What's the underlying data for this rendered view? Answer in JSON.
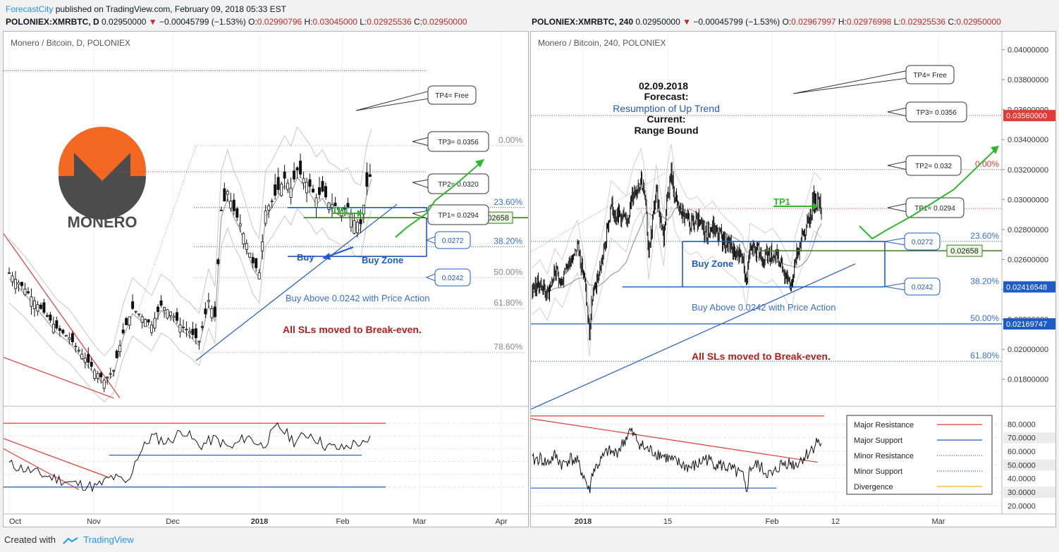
{
  "header": {
    "brand": "ForecastCity",
    "publish_text": " published on TradingView.com, February 09, 2018 05:33 EST",
    "left_symbol": {
      "symbol": "POLONIEX:XMRBTC, D",
      "price": "0.02950000",
      "change": "−0.00045799 (−1.53%)",
      "o": "0.02990796",
      "h": "0.03045000",
      "l": "0.02925536",
      "c": "0.02950000"
    },
    "right_symbol": {
      "symbol": "POLONIEX:XMRBTC, 240",
      "price": "0.02950000",
      "change": "−0.00045799 (−1.53%)",
      "o": "0.02967997",
      "h": "0.02976998",
      "l": "0.02925536",
      "c": "0.02950000"
    }
  },
  "footer": {
    "created_with": "Created with",
    "tradingview": "TradingView"
  },
  "colors": {
    "major_resistance": "#e53935",
    "major_support": "#1e5bc6",
    "minor_resistance": "#e53935",
    "minor_support": "#1e5bc6",
    "divergence": "#f0b323",
    "tp_arrow": "#2eb82e",
    "sl_text": "#b71c1c",
    "fib_text": "#3b6fcf"
  },
  "left_panel": {
    "title": "Monero / Bitcoin, D, POLONIEX",
    "logo_text": "MONERO",
    "fib_labels": [
      "0.00%",
      "23.60%",
      "38.20%",
      "50.00%",
      "61.80%",
      "78.60%"
    ],
    "tp_callouts": [
      "TP4= Free",
      "TP3= 0.0356",
      "TP2= 0.0320",
      "TP1= 0.0294"
    ],
    "zone_callouts": [
      "0.0272",
      "0.0242"
    ],
    "price_tag": "0.02658",
    "tp1_label": "TP1",
    "buy_label": "Buy",
    "buy_zone_label": "Buy Zone",
    "buy_above_text": "Buy Above 0.0242 with Price Action",
    "sl_text": "All SLs moved to Break-even.",
    "x_ticks": [
      "Oct",
      "Nov",
      "Dec",
      "2018",
      "Feb",
      "Mar",
      "Apr"
    ]
  },
  "right_panel": {
    "title": "Monero / Bitcoin, 240, POLONIEX",
    "forecast": {
      "date": "02.09.2018",
      "forecast_label": "Forecast:",
      "forecast_value": "Resumption of Up Trend",
      "current_label": "Current:",
      "current_value": "Range Bound"
    },
    "fib_labels": [
      "0.00%",
      "23.60%",
      "38.20%",
      "50.00%",
      "61.80%"
    ],
    "tp_callouts": [
      "TP4= Free",
      "TP3= 0.0356",
      "TP2= 0.032",
      "TP1= 0.0294"
    ],
    "zone_callouts": [
      "0.0272",
      "0.0242"
    ],
    "price_tag": "0.02658",
    "tp1_label": "TP1",
    "buy_zone_label": "Buy Zone",
    "buy_above_text": "Buy Above 0.0242 with Price Action",
    "sl_text": "All SLs moved to Break-even.",
    "x_ticks": [
      "2018",
      "15",
      "Feb",
      "12",
      "Mar"
    ],
    "price_axis": [
      "0.04000000",
      "0.03800000",
      "0.03600000",
      "0.03400000",
      "0.03200000",
      "0.03000000",
      "0.02800000",
      "0.02600000",
      "0.02400000",
      "0.02200000",
      "0.02000000",
      "0.01800000"
    ],
    "price_axis_tags": [
      "0.03560000",
      "0.02416548",
      "0.02169747"
    ],
    "indicator_axis": [
      "80.0000",
      "70.0000",
      "60.0000",
      "50.0000",
      "40.0000",
      "30.0000",
      "20.0000"
    ],
    "legend": [
      {
        "label": "Major Resistance",
        "color": "#e53935",
        "style": "solid"
      },
      {
        "label": "Major Support",
        "color": "#1e5bc6",
        "style": "solid"
      },
      {
        "label": "Minor Resistance",
        "color": "#e53935",
        "style": "dotted"
      },
      {
        "label": "Minor Support",
        "color": "#1e5bc6",
        "style": "dotted"
      },
      {
        "label": "Divergence",
        "color": "#f0b323",
        "style": "solid"
      }
    ]
  },
  "chart_data": [
    {
      "type": "candlestick",
      "title": "Monero / Bitcoin, D, POLONIEX",
      "x_range": [
        "2017-10-01",
        "2018-04-05"
      ],
      "ylim": [
        0.015,
        0.038
      ],
      "x_ticks": [
        "Oct",
        "Nov",
        "Dec",
        "2018",
        "Feb",
        "Mar",
        "Apr"
      ],
      "levels": {
        "tp2": 0.032,
        "tp3": 0.0356,
        "tp1": 0.0294,
        "zone_top": 0.0272,
        "zone_bottom": 0.0242,
        "support_line": 0.02658,
        "fib_0": 0.031,
        "fib_236": 0.0272,
        "fib_382": 0.0248,
        "fib_50": 0.0229,
        "fib_618": 0.021,
        "fib_786": 0.0183
      },
      "path": [
        [
          0,
          0.0232
        ],
        [
          10,
          0.0222
        ],
        [
          20,
          0.021
        ],
        [
          30,
          0.0198
        ],
        [
          38,
          0.0192
        ],
        [
          46,
          0.0182
        ],
        [
          54,
          0.0172
        ],
        [
          60,
          0.0166
        ],
        [
          66,
          0.0172
        ],
        [
          72,
          0.0195
        ],
        [
          78,
          0.021
        ],
        [
          84,
          0.0205
        ],
        [
          90,
          0.02
        ],
        [
          96,
          0.0212
        ],
        [
          102,
          0.0208
        ],
        [
          108,
          0.02
        ],
        [
          114,
          0.0196
        ],
        [
          120,
          0.019
        ],
        [
          126,
          0.0215
        ],
        [
          130,
          0.0205
        ],
        [
          134,
          0.027
        ],
        [
          138,
          0.0282
        ],
        [
          142,
          0.027
        ],
        [
          146,
          0.0262
        ],
        [
          150,
          0.025
        ],
        [
          154,
          0.0238
        ],
        [
          158,
          0.0232
        ],
        [
          162,
          0.027
        ],
        [
          166,
          0.0276
        ],
        [
          170,
          0.0283
        ],
        [
          174,
          0.029
        ],
        [
          178,
          0.0284
        ],
        [
          182,
          0.0295
        ],
        [
          186,
          0.029
        ],
        [
          190,
          0.0285
        ],
        [
          194,
          0.0278
        ],
        [
          198,
          0.0282
        ],
        [
          202,
          0.0275
        ],
        [
          206,
          0.0273
        ],
        [
          210,
          0.027
        ],
        [
          214,
          0.0272
        ],
        [
          218,
          0.0264
        ],
        [
          222,
          0.0262
        ],
        [
          226,
          0.0285
        ],
        [
          229,
          0.0294
        ]
      ],
      "main_series_label": "XMRBTC D",
      "indicator": {
        "ylim": [
          10,
          90
        ],
        "resistance": 80,
        "support_major": 55,
        "support_minor": 30,
        "path": [
          [
            0,
            48
          ],
          [
            20,
            40
          ],
          [
            40,
            33
          ],
          [
            55,
            30
          ],
          [
            65,
            38
          ],
          [
            75,
            33
          ],
          [
            80,
            52
          ],
          [
            90,
            70
          ],
          [
            100,
            65
          ],
          [
            110,
            75
          ],
          [
            120,
            62
          ],
          [
            130,
            68
          ],
          [
            140,
            60
          ],
          [
            150,
            70
          ],
          [
            160,
            62
          ],
          [
            170,
            78
          ],
          [
            180,
            66
          ],
          [
            190,
            72
          ],
          [
            200,
            62
          ],
          [
            210,
            60
          ],
          [
            220,
            65
          ],
          [
            226,
            62
          ],
          [
            229,
            70
          ]
        ]
      }
    },
    {
      "type": "line",
      "title": "Monero / Bitcoin, 240, POLONIEX",
      "x_range": [
        "2017-12-26",
        "2018-03-07"
      ],
      "ylim": [
        0.0162,
        0.0412
      ],
      "x_ticks": [
        "2018",
        "15",
        "Feb",
        "12",
        "Mar"
      ],
      "levels": {
        "tp3": 0.0356,
        "tp2": 0.032,
        "tp1": 0.0294,
        "zone_top": 0.0272,
        "zone_bottom": 0.02416548,
        "support_line": 0.02658,
        "fib_50": 0.02169747,
        "fib_618": 0.0192
      },
      "path": [
        [
          0,
          0.024
        ],
        [
          10,
          0.0245
        ],
        [
          20,
          0.0236
        ],
        [
          30,
          0.0252
        ],
        [
          40,
          0.0245
        ],
        [
          50,
          0.026
        ],
        [
          60,
          0.027
        ],
        [
          70,
          0.0245
        ],
        [
          76,
          0.021
        ],
        [
          80,
          0.0235
        ],
        [
          86,
          0.0245
        ],
        [
          95,
          0.0265
        ],
        [
          105,
          0.0295
        ],
        [
          115,
          0.029
        ],
        [
          125,
          0.0285
        ],
        [
          135,
          0.0305
        ],
        [
          145,
          0.0315
        ],
        [
          150,
          0.03
        ],
        [
          155,
          0.0265
        ],
        [
          160,
          0.0285
        ],
        [
          165,
          0.0305
        ],
        [
          170,
          0.029
        ],
        [
          175,
          0.0275
        ],
        [
          180,
          0.0305
        ],
        [
          185,
          0.0318
        ],
        [
          190,
          0.03
        ],
        [
          195,
          0.0295
        ],
        [
          200,
          0.029
        ],
        [
          205,
          0.0285
        ],
        [
          210,
          0.0283
        ],
        [
          220,
          0.0285
        ],
        [
          230,
          0.0278
        ],
        [
          240,
          0.0282
        ],
        [
          250,
          0.0275
        ],
        [
          260,
          0.027
        ],
        [
          270,
          0.0266
        ],
        [
          280,
          0.026
        ],
        [
          285,
          0.0245
        ],
        [
          290,
          0.0268
        ],
        [
          300,
          0.0265
        ],
        [
          310,
          0.0262
        ],
        [
          320,
          0.0265
        ],
        [
          330,
          0.0258
        ],
        [
          340,
          0.0248
        ],
        [
          345,
          0.0242
        ],
        [
          350,
          0.026
        ],
        [
          355,
          0.0268
        ],
        [
          360,
          0.0275
        ],
        [
          365,
          0.0282
        ],
        [
          370,
          0.029
        ],
        [
          375,
          0.03
        ],
        [
          380,
          0.0298
        ],
        [
          385,
          0.0295
        ]
      ],
      "main_series_label": "XMRBTC 240",
      "indicator": {
        "ylim": [
          15,
          90
        ],
        "resistance": 86,
        "support_major": 33,
        "path": [
          [
            0,
            53
          ],
          [
            10,
            55
          ],
          [
            20,
            51
          ],
          [
            30,
            57
          ],
          [
            40,
            50
          ],
          [
            50,
            55
          ],
          [
            60,
            52
          ],
          [
            70,
            40
          ],
          [
            76,
            30
          ],
          [
            80,
            45
          ],
          [
            90,
            52
          ],
          [
            100,
            60
          ],
          [
            110,
            58
          ],
          [
            120,
            65
          ],
          [
            130,
            75
          ],
          [
            140,
            68
          ],
          [
            150,
            62
          ],
          [
            160,
            60
          ],
          [
            170,
            58
          ],
          [
            180,
            55
          ],
          [
            190,
            52
          ],
          [
            200,
            50
          ],
          [
            210,
            48
          ],
          [
            220,
            50
          ],
          [
            230,
            55
          ],
          [
            240,
            52
          ],
          [
            250,
            50
          ],
          [
            260,
            48
          ],
          [
            270,
            45
          ],
          [
            280,
            42
          ],
          [
            285,
            30
          ],
          [
            290,
            48
          ],
          [
            300,
            50
          ],
          [
            310,
            45
          ],
          [
            320,
            42
          ],
          [
            330,
            50
          ],
          [
            340,
            52
          ],
          [
            350,
            50
          ],
          [
            360,
            55
          ],
          [
            370,
            60
          ],
          [
            380,
            68
          ],
          [
            385,
            64
          ]
        ]
      }
    }
  ]
}
